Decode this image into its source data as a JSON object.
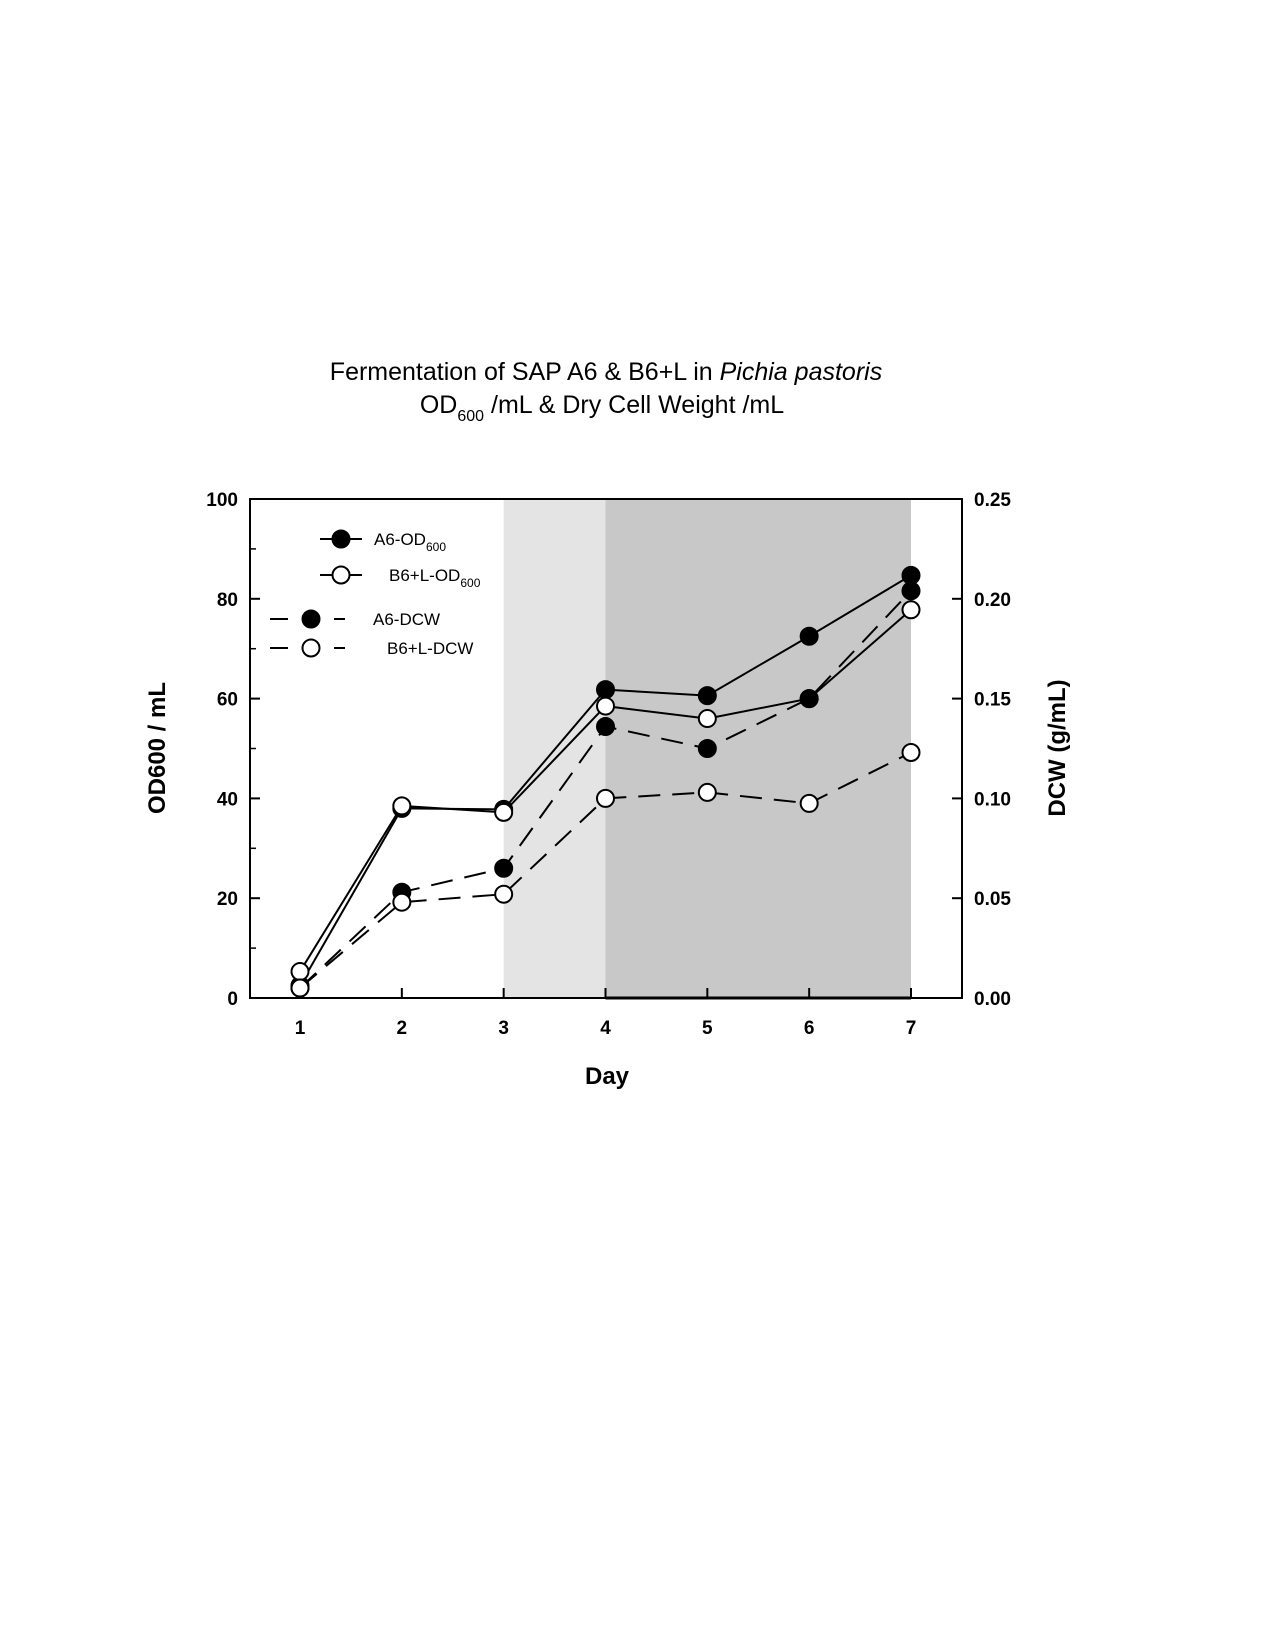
{
  "chart_data": {
    "type": "line",
    "title_line1_prefix": "Fermentation of SAP A6 & B6+L in ",
    "title_line1_italic": "Pichia pastoris",
    "title_line2_prefix": "OD",
    "title_line2_sub": "600",
    "title_line2_suffix": " /mL & Dry Cell Weight /mL",
    "xlabel": "Day",
    "ylabel_main": "OD",
    "ylabel_sub": "600",
    "ylabel_suffix": " / mL",
    "y2label": "DCW (g/mL)",
    "x": [
      1,
      2,
      3,
      4,
      5,
      6,
      7
    ],
    "xlim": [
      0.5,
      7.5
    ],
    "ylim": [
      0,
      100
    ],
    "y2lim": [
      0,
      0.25
    ],
    "yticks": [
      "0",
      "20",
      "40",
      "60",
      "80",
      "100"
    ],
    "y2ticks": [
      "0.00",
      "0.05",
      "0.10",
      "0.15",
      "0.20",
      "0.25"
    ],
    "xticks": [
      "1",
      "2",
      "3",
      "4",
      "5",
      "6",
      "7"
    ],
    "shaded_regions": [
      {
        "from": 3,
        "to": 4,
        "color": "#e4e4e4"
      },
      {
        "from": 4,
        "to": 7,
        "color": "#c8c8c8"
      }
    ],
    "legend_position": "top-left",
    "series": [
      {
        "name": "A6-OD",
        "name_sub": "600",
        "axis": "left",
        "marker": "filled",
        "style": "solid",
        "values": [
          2.5,
          38,
          37.8,
          61.8,
          60.6,
          72.5,
          84.7
        ]
      },
      {
        "name": "B6+L-OD",
        "name_sub": "600",
        "axis": "left",
        "marker": "open",
        "style": "solid",
        "values": [
          5.3,
          38.5,
          37.2,
          58.5,
          56,
          60,
          77.8
        ]
      },
      {
        "name": "A6-DCW",
        "name_sub": "",
        "axis": "right",
        "marker": "filled",
        "style": "dashed",
        "values": [
          0.005,
          0.053,
          0.065,
          0.136,
          0.125,
          0.15,
          0.204
        ]
      },
      {
        "name": "B6+L-DCW",
        "name_sub": "",
        "axis": "right",
        "marker": "open",
        "style": "dashed",
        "values": [
          0.005,
          0.048,
          0.052,
          0.1,
          0.103,
          0.0975,
          0.123
        ]
      }
    ]
  }
}
